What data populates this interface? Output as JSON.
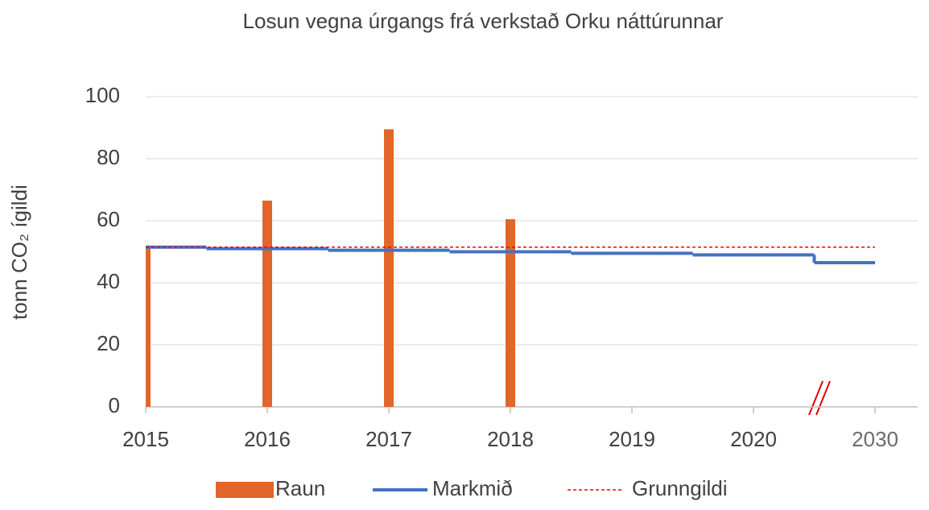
{
  "chart_data": {
    "type": "combo",
    "title": "Losun vegna úrgangs frá verkstað Orku náttúrunnar",
    "y_label": "tonn CO₂ ígildi",
    "categories": [
      "2015",
      "2016",
      "2017",
      "2018",
      "2019",
      "2020",
      "2030"
    ],
    "series": [
      {
        "name": "Raun",
        "kind": "bar",
        "color": "#e2652a",
        "values": [
          51,
          66.5,
          89.5,
          60.5,
          null,
          null,
          null
        ]
      },
      {
        "name": "Markmið",
        "kind": "step",
        "color": "#4472c4",
        "values": [
          51.5,
          51,
          50.5,
          50,
          49.5,
          49,
          46.5
        ]
      },
      {
        "name": "Grunngildi",
        "kind": "dashed",
        "color": "#ff0000",
        "values": [
          51.5,
          51.5,
          51.5,
          51.5,
          51.5,
          51.5,
          51.5
        ]
      }
    ],
    "ylim": [
      0,
      100
    ],
    "yticks": [
      0,
      20,
      40,
      60,
      80,
      100
    ],
    "grid": true,
    "legend": "bottom"
  }
}
